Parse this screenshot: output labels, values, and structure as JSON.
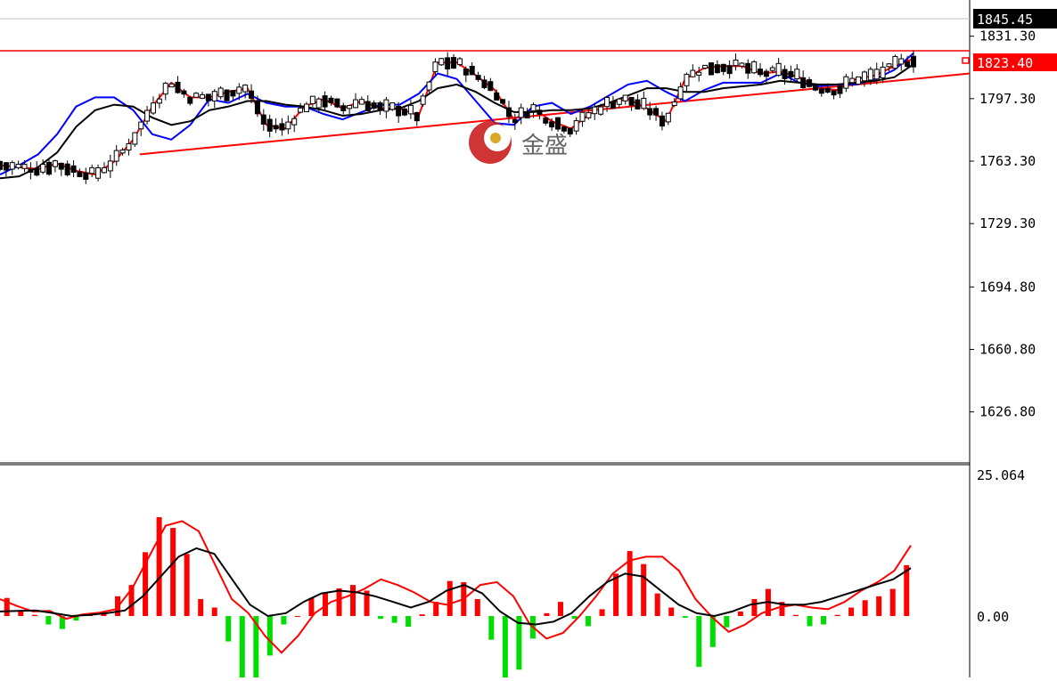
{
  "watermark": {
    "text": "金盛"
  },
  "colors": {
    "up": "#ff0000",
    "down": "#00dd00",
    "ma_fast": "#ff0000",
    "ma_mid": "#0000ff",
    "ma_slow": "#000000",
    "trendline": "#ff0000",
    "badge_dark": "#000000",
    "badge_red": "#ff0000",
    "grid_line": "#c0c0c0"
  },
  "price_axis": {
    "ticks": [
      "1831.30",
      "1797.30",
      "1763.30",
      "1729.30",
      "1694.80",
      "1660.80",
      "1626.80"
    ],
    "current_price_label": "1845.45",
    "level_label": "1823.40"
  },
  "macd_axis": {
    "ticks": [
      "25.064",
      "0.00"
    ]
  },
  "chart_data": [
    {
      "type": "candlestick",
      "title": "",
      "ylim": [
        1600,
        1851
      ],
      "grid": false,
      "annotations": [
        {
          "kind": "horizontal_line",
          "value": 1823.4,
          "color": "red"
        },
        {
          "kind": "trendline",
          "from": [
            0.135,
            1767
          ],
          "to": [
            1.0,
            1811
          ],
          "color": "red"
        }
      ],
      "series": [
        {
          "values": [
            1761,
            1760,
            1759,
            1762,
            1758,
            1756,
            1763,
            1775,
            1793,
            1806,
            1798,
            1798,
            1801,
            1803,
            1783,
            1781,
            1793,
            1797,
            1792,
            1796,
            1792,
            1792,
            1788,
            1817,
            1817,
            1810,
            1802,
            1786,
            1792,
            1785,
            1781,
            1789,
            1795,
            1797,
            1792,
            1785,
            1808,
            1814,
            1815,
            1815,
            1811,
            1812,
            1809,
            1803,
            1802,
            1808,
            1810,
            1815,
            1819
          ]
        },
        {
          "values": [
            1756,
            1761,
            1767,
            1778,
            1793,
            1798,
            1798,
            1791,
            1778,
            1775,
            1783,
            1797,
            1795,
            1800,
            1795,
            1793,
            1793,
            1789,
            1786,
            1790,
            1794,
            1794,
            1800,
            1811,
            1808,
            1796,
            1784,
            1783,
            1793,
            1795,
            1789,
            1793,
            1799,
            1805,
            1807,
            1801,
            1796,
            1802,
            1806,
            1806,
            1806,
            1811,
            1806,
            1804,
            1805,
            1805,
            1808,
            1813,
            1822
          ]
        },
        {
          "values": [
            1754,
            1755,
            1760,
            1768,
            1782,
            1791,
            1794,
            1793,
            1787,
            1783,
            1785,
            1791,
            1793,
            1796,
            1796,
            1794,
            1793,
            1791,
            1788,
            1789,
            1791,
            1792,
            1796,
            1803,
            1805,
            1801,
            1795,
            1790,
            1790,
            1791,
            1791,
            1792,
            1795,
            1799,
            1803,
            1803,
            1801,
            1801,
            1803,
            1804,
            1805,
            1807,
            1806,
            1805,
            1805,
            1806,
            1807,
            1809,
            1816
          ]
        }
      ]
    },
    {
      "type": "bar+line",
      "title": "",
      "ylim": [
        -18,
        25.064
      ],
      "histogram": [
        3.2,
        1.0,
        0.2,
        -1.5,
        -2.3,
        -0.8,
        0.3,
        0.8,
        3.5,
        5.5,
        11.3,
        17.5,
        15.6,
        11.0,
        3.0,
        1.5,
        -4.5,
        -13.0,
        -12.4,
        -7.0,
        -1.5,
        0.0,
        3.2,
        4.0,
        4.9,
        5.5,
        4.5,
        -0.5,
        -1.2,
        -1.9,
        0.3,
        2.5,
        6.2,
        6.0,
        3.0,
        -4.2,
        -12.0,
        -9.5,
        -4.0,
        0.5,
        2.5,
        -0.5,
        -1.8,
        1.2,
        7.5,
        11.5,
        9.2,
        4.0,
        1.5,
        -0.3,
        -9.0,
        -5.5,
        -2.0,
        0.8,
        3.0,
        4.8,
        2.5,
        0.2,
        -1.8,
        -1.5,
        0.2,
        1.5,
        2.8,
        3.5,
        4.8,
        9.0
      ],
      "series": [
        {
          "values": [
            3.0,
            1.8,
            0.8,
            0.9,
            -0.5,
            0.3,
            0.6,
            1.2,
            5.0,
            10.5,
            16.0,
            16.8,
            15.0,
            9.0,
            3.0,
            0.5,
            -3.5,
            -6.5,
            -3.5,
            0.5,
            2.5,
            3.5,
            4.8,
            6.5,
            5.5,
            4.2,
            2.5,
            2.0,
            3.0,
            5.5,
            6.0,
            3.5,
            -1.5,
            -4.0,
            -3.0,
            0.0,
            3.5,
            7.5,
            9.8,
            10.5,
            10.5,
            8.0,
            3.0,
            -0.2,
            -2.8,
            -1.5,
            0.5,
            1.5,
            2.0,
            1.5,
            1.2,
            2.5,
            4.5,
            6.0,
            8.0,
            12.5
          ]
        },
        {
          "values": [
            0.8,
            0.9,
            1.0,
            0.5,
            0.0,
            0.2,
            0.5,
            1.0,
            3.5,
            7.0,
            10.5,
            12.0,
            11.0,
            6.5,
            2.0,
            0.0,
            0.5,
            2.5,
            4.0,
            4.5,
            4.2,
            3.5,
            2.5,
            1.5,
            2.5,
            4.5,
            5.5,
            4.0,
            0.8,
            -1.2,
            -1.5,
            -1.0,
            0.5,
            3.5,
            6.0,
            7.5,
            7.0,
            4.5,
            2.0,
            0.5,
            0.0,
            0.8,
            2.0,
            2.5,
            2.0,
            2.0,
            2.5,
            3.5,
            4.5,
            5.5,
            6.5,
            8.5
          ]
        }
      ]
    }
  ]
}
